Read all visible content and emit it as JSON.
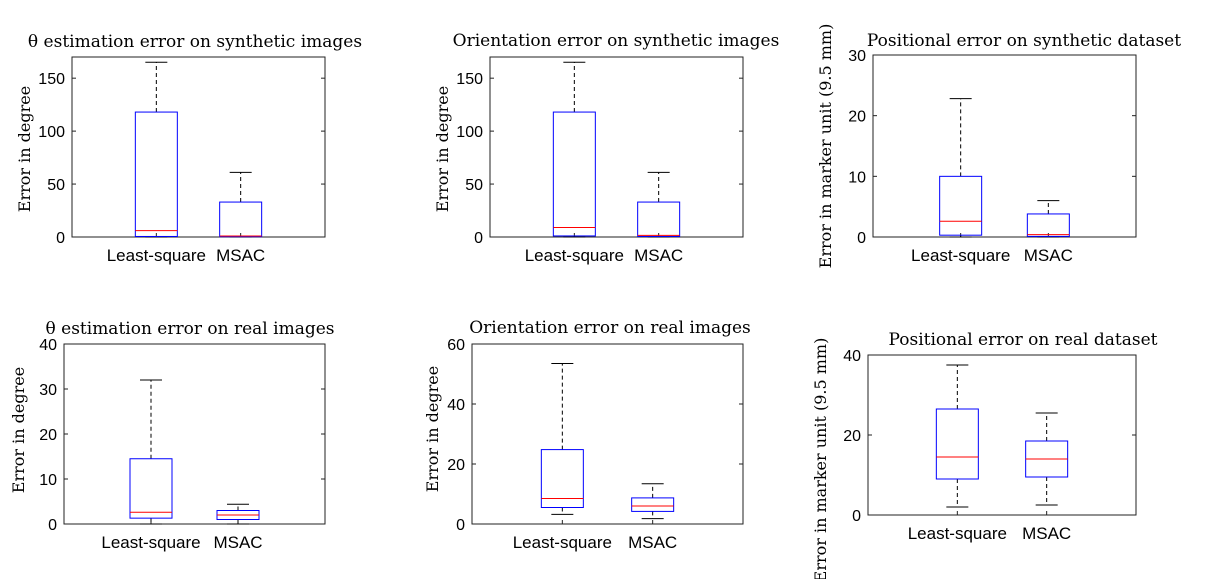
{
  "chart_data": [
    {
      "type": "box",
      "title": "θ estimation error on synthetic images",
      "ylabel": "Error in degree",
      "ylim": [
        0,
        170
      ],
      "yticks": [
        0,
        50,
        100,
        150
      ],
      "categories": [
        "Least-square",
        "MSAC"
      ],
      "boxes": [
        {
          "whisker_low": 0,
          "q1": 0.5,
          "median": 6,
          "q3": 118,
          "whisker_high": 165
        },
        {
          "whisker_low": 0,
          "q1": 0.3,
          "median": 1,
          "q3": 33,
          "whisker_high": 61
        }
      ]
    },
    {
      "type": "box",
      "title": "Orientation error on synthetic images",
      "ylabel": "Error in degree",
      "ylim": [
        0,
        170
      ],
      "yticks": [
        0,
        50,
        100,
        150
      ],
      "categories": [
        "Least-square",
        "MSAC"
      ],
      "boxes": [
        {
          "whisker_low": 0,
          "q1": 1,
          "median": 9,
          "q3": 118,
          "whisker_high": 165
        },
        {
          "whisker_low": 0,
          "q1": 0.5,
          "median": 1.5,
          "q3": 33,
          "whisker_high": 61
        }
      ]
    },
    {
      "type": "box",
      "title": "Positional error on synthetic dataset",
      "ylabel": "Error in marker unit (9.5 mm)",
      "ylim": [
        0,
        30
      ],
      "yticks": [
        0,
        10,
        20,
        30
      ],
      "categories": [
        "Least-square",
        "MSAC"
      ],
      "boxes": [
        {
          "whisker_low": 0,
          "q1": 0.3,
          "median": 2.6,
          "q3": 10,
          "whisker_high": 22.8
        },
        {
          "whisker_low": 0,
          "q1": 0.1,
          "median": 0.4,
          "q3": 3.8,
          "whisker_high": 6
        }
      ]
    },
    {
      "type": "box",
      "title": "θ estimation error on real images",
      "ylabel": "Error in degree",
      "ylim": [
        0,
        40
      ],
      "yticks": [
        0,
        10,
        20,
        30,
        40
      ],
      "categories": [
        "Least-square",
        "MSAC"
      ],
      "boxes": [
        {
          "whisker_low": 0,
          "q1": 1.3,
          "median": 2.6,
          "q3": 14.5,
          "whisker_high": 32
        },
        {
          "whisker_low": 0,
          "q1": 1,
          "median": 2,
          "q3": 3,
          "whisker_high": 4.4
        }
      ]
    },
    {
      "type": "box",
      "title": "Orientation error on real images",
      "ylabel": "Error in degree",
      "ylim": [
        0,
        60
      ],
      "yticks": [
        0,
        20,
        40,
        60
      ],
      "categories": [
        "Least-square",
        "MSAC"
      ],
      "boxes": [
        {
          "whisker_low": 3.2,
          "q1": 5.5,
          "median": 8.5,
          "q3": 24.8,
          "whisker_high": 53.5
        },
        {
          "whisker_low": 1.8,
          "q1": 4.2,
          "median": 6,
          "q3": 8.7,
          "whisker_high": 13.4
        }
      ]
    },
    {
      "type": "box",
      "title": "Positional error on real dataset",
      "ylabel": "Error in marker unit (9.5 mm)",
      "ylim": [
        0,
        40
      ],
      "yticks": [
        0,
        20,
        40
      ],
      "categories": [
        "Least-square",
        "MSAC"
      ],
      "boxes": [
        {
          "whisker_low": 2,
          "q1": 9,
          "median": 14.5,
          "q3": 26.5,
          "whisker_high": 37.5
        },
        {
          "whisker_low": 2.5,
          "q1": 9.5,
          "median": 14,
          "q3": 18.5,
          "whisker_high": 25.5
        }
      ]
    }
  ]
}
